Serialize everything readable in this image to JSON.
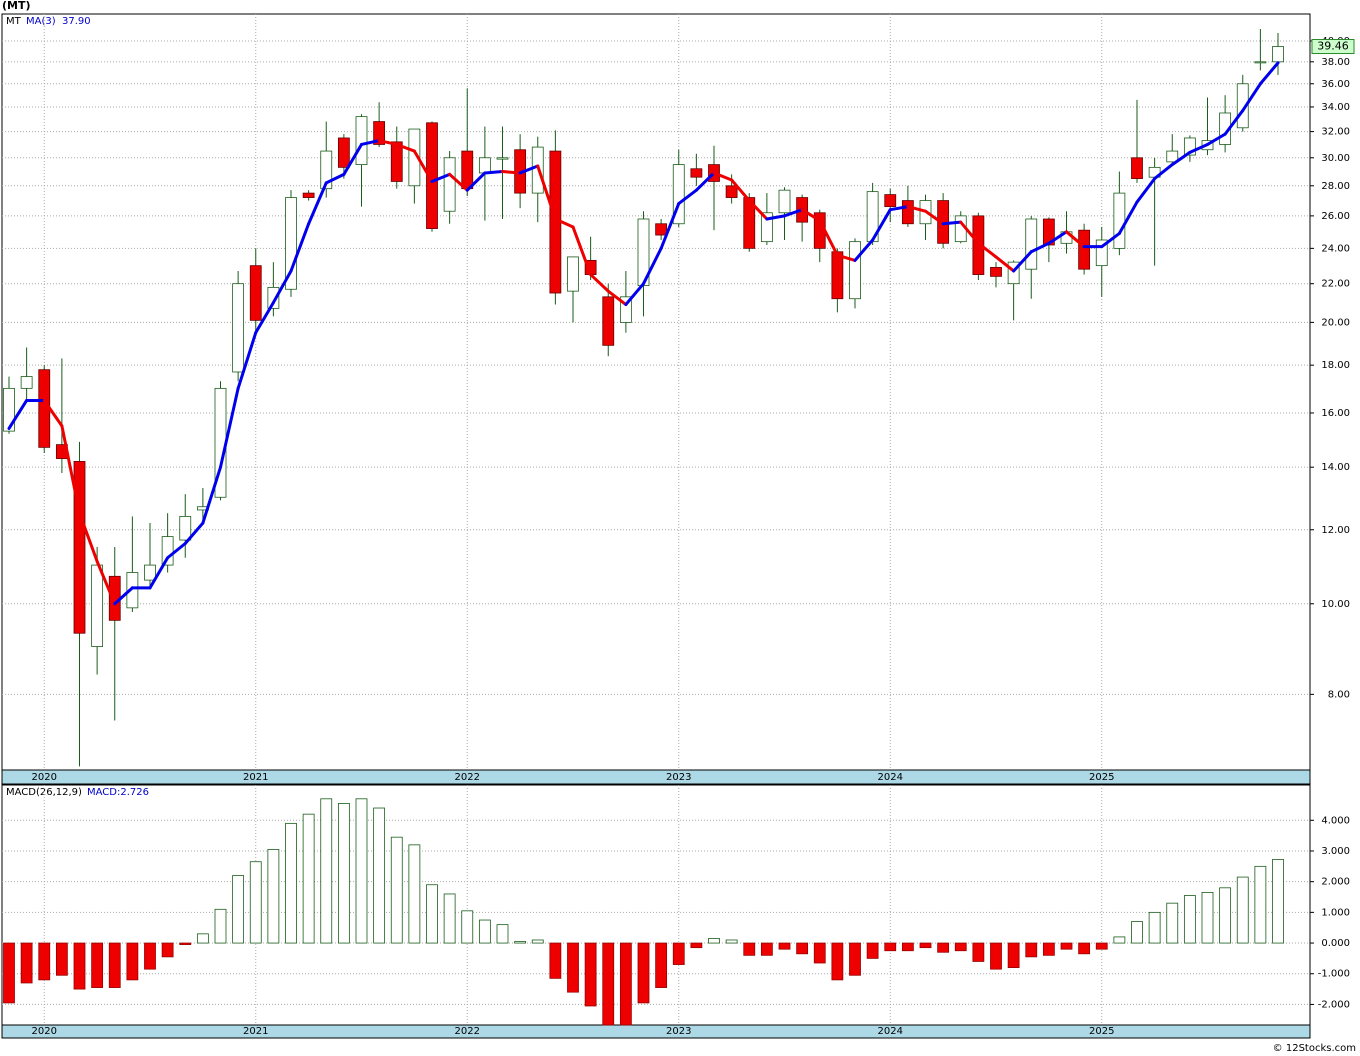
{
  "chart_data": [
    {
      "type": "candlestick",
      "title": "(MT)",
      "ticker": "MT",
      "footer": "© 12Stocks.com",
      "categories": [
        null,
        null,
        "2020",
        null,
        null,
        null,
        null,
        null,
        null,
        null,
        null,
        null,
        null,
        null,
        "2021",
        null,
        null,
        null,
        null,
        null,
        null,
        null,
        null,
        null,
        null,
        null,
        "2022",
        null,
        null,
        null,
        null,
        null,
        null,
        null,
        null,
        null,
        null,
        null,
        "2023",
        null,
        null,
        null,
        null,
        null,
        null,
        null,
        null,
        null,
        null,
        null,
        "2024",
        null,
        null,
        null,
        null,
        null,
        null,
        null,
        null,
        null,
        null,
        null,
        "2025",
        null,
        null,
        null,
        null,
        null,
        null,
        null,
        null,
        null,
        null
      ],
      "open": [
        15.3,
        17.0,
        17.8,
        14.8,
        14.2,
        9.0,
        10.7,
        9.9,
        10.6,
        11.0,
        11.7,
        12.6,
        13.0,
        17.7,
        23.0,
        20.7,
        21.7,
        27.5,
        27.8,
        31.5,
        29.5,
        32.8,
        31.2,
        28.0,
        32.7,
        26.3,
        30.5,
        28.9,
        29.9,
        30.6,
        27.5,
        30.5,
        21.6,
        23.3,
        21.3,
        20.0,
        21.9,
        25.5,
        25.5,
        29.2,
        29.5,
        28.0,
        27.2,
        24.4,
        26.2,
        27.2,
        26.2,
        23.8,
        21.2,
        24.4,
        27.4,
        27.0,
        25.5,
        27.0,
        24.4,
        26.0,
        22.9,
        22.0,
        22.8,
        25.8,
        24.3,
        25.1,
        23.0,
        24.0,
        30.0,
        28.6,
        29.7,
        30.2,
        30.6,
        31.0,
        32.3,
        37.9,
        38.0
      ],
      "high": [
        17.5,
        18.8,
        18.0,
        18.3,
        14.9,
        11.5,
        11.5,
        12.4,
        12.2,
        12.5,
        13.1,
        13.3,
        17.3,
        22.7,
        24.0,
        23.2,
        27.7,
        27.7,
        32.8,
        31.8,
        33.4,
        34.4,
        32.4,
        32.2,
        32.8,
        30.5,
        35.6,
        32.4,
        32.4,
        31.8,
        31.6,
        32.1,
        23.5,
        24.7,
        22.0,
        22.7,
        26.3,
        25.8,
        30.6,
        30.3,
        30.9,
        28.8,
        27.5,
        27.5,
        27.9,
        27.4,
        26.4,
        24.0,
        24.6,
        28.2,
        27.8,
        28.0,
        27.4,
        27.5,
        26.3,
        26.2,
        23.2,
        23.3,
        26.0,
        25.9,
        26.3,
        25.5,
        25.3,
        29.0,
        34.6,
        30.0,
        31.8,
        31.7,
        34.8,
        35.0,
        36.8,
        41.2,
        40.8
      ],
      "low": [
        15.2,
        16.5,
        14.5,
        13.8,
        6.7,
        8.4,
        7.5,
        9.8,
        10.4,
        10.8,
        11.2,
        12.3,
        12.9,
        17.3,
        19.5,
        20.3,
        21.3,
        27.0,
        27.2,
        28.5,
        26.6,
        30.8,
        27.8,
        26.8,
        25.0,
        25.5,
        27.3,
        25.7,
        25.8,
        26.5,
        25.6,
        20.9,
        20.0,
        22.2,
        18.4,
        19.5,
        20.3,
        24.5,
        25.3,
        28.0,
        25.1,
        26.8,
        23.8,
        24.2,
        24.5,
        24.4,
        23.2,
        20.5,
        20.7,
        24.2,
        25.6,
        25.3,
        24.5,
        24.0,
        24.3,
        22.2,
        21.8,
        20.1,
        21.2,
        23.2,
        23.7,
        22.5,
        21.3,
        23.6,
        28.2,
        23.0,
        29.6,
        29.7,
        30.2,
        30.4,
        32.0,
        37.2,
        36.8
      ],
      "close": [
        17.0,
        17.5,
        14.7,
        14.3,
        9.3,
        11.0,
        9.6,
        10.8,
        11.0,
        11.8,
        12.4,
        12.7,
        17.0,
        22.0,
        20.1,
        21.8,
        27.2,
        27.2,
        30.5,
        29.3,
        33.2,
        31.0,
        28.3,
        32.2,
        25.2,
        30.0,
        27.8,
        30.0,
        30.0,
        27.5,
        30.8,
        21.5,
        23.5,
        22.5,
        18.9,
        21.3,
        25.8,
        24.8,
        29.5,
        28.6,
        28.3,
        27.2,
        24.0,
        26.2,
        27.7,
        25.6,
        24.0,
        21.2,
        24.4,
        27.6,
        26.6,
        25.5,
        27.0,
        24.3,
        26.0,
        22.5,
        22.4,
        23.2,
        25.8,
        24.2,
        25.0,
        22.8,
        24.5,
        27.5,
        28.5,
        29.3,
        30.5,
        31.5,
        31.3,
        33.5,
        36.0,
        38.0,
        39.46
      ],
      "ma": {
        "name": "MA(3)",
        "label": "37.90",
        "up_color": "#0000ee",
        "down_color": "#ee0000",
        "values": [
          15.4,
          16.5,
          16.5,
          15.5,
          12.5,
          11.1,
          10.0,
          10.4,
          10.4,
          11.2,
          11.6,
          12.2,
          14.0,
          17.0,
          19.5,
          21.0,
          22.7,
          25.5,
          28.2,
          28.8,
          31.0,
          31.3,
          31.0,
          30.5,
          28.3,
          28.8,
          27.7,
          28.9,
          29.0,
          28.9,
          29.4,
          25.8,
          25.3,
          22.5,
          21.6,
          20.9,
          22.0,
          24.0,
          26.8,
          27.7,
          28.9,
          28.4,
          27.0,
          25.8,
          26.0,
          26.4,
          25.7,
          23.6,
          23.3,
          24.5,
          26.4,
          26.6,
          26.3,
          25.5,
          25.6,
          24.3,
          23.5,
          22.7,
          23.8,
          24.3,
          25.0,
          24.1,
          24.1,
          24.9,
          26.9,
          28.5,
          29.5,
          30.4,
          31.0,
          31.8,
          33.7,
          36.0,
          37.9
        ]
      },
      "ylim": [
        6.64,
        42.75
      ],
      "log_scale": true,
      "grid": true,
      "up_color": "#ffffff",
      "down_color": "#ee0000",
      "wick_color": "#1a5c1a",
      "yticks": [
        {
          "value": 8,
          "label": "8.00"
        },
        {
          "value": 10,
          "label": "10.00"
        },
        {
          "value": 12,
          "label": "12.00"
        },
        {
          "value": 14,
          "label": "14.00"
        },
        {
          "value": 16,
          "label": "16.00"
        },
        {
          "value": 18,
          "label": "18.00"
        },
        {
          "value": 20,
          "label": "20.00"
        },
        {
          "value": 22,
          "label": "22.00"
        },
        {
          "value": 24,
          "label": "24.00"
        },
        {
          "value": 26,
          "label": "26.00"
        },
        {
          "value": 28,
          "label": "28.00"
        },
        {
          "value": 30,
          "label": "30.00"
        },
        {
          "value": 32,
          "label": "32.00"
        },
        {
          "value": 34,
          "label": "34.00"
        },
        {
          "value": 36,
          "label": "36.00"
        },
        {
          "value": 38,
          "label": "38.00"
        },
        {
          "value": 40,
          "label": "40.00"
        }
      ]
    },
    {
      "type": "bar",
      "name": "MACD(26,12,9)",
      "value_label": "MACD:2.726",
      "categories": [
        null,
        null,
        "2020",
        null,
        null,
        null,
        null,
        null,
        null,
        null,
        null,
        null,
        null,
        null,
        "2021",
        null,
        null,
        null,
        null,
        null,
        null,
        null,
        null,
        null,
        null,
        null,
        "2022",
        null,
        null,
        null,
        null,
        null,
        null,
        null,
        null,
        null,
        null,
        null,
        "2023",
        null,
        null,
        null,
        null,
        null,
        null,
        null,
        null,
        null,
        null,
        null,
        "2024",
        null,
        null,
        null,
        null,
        null,
        null,
        null,
        null,
        null,
        null,
        null,
        "2025",
        null,
        null,
        null,
        null,
        null,
        null,
        null,
        null,
        null,
        null
      ],
      "values": [
        -1.95,
        -1.3,
        -1.2,
        -1.05,
        -1.5,
        -1.45,
        -1.45,
        -1.2,
        -0.85,
        -0.45,
        -0.05,
        0.3,
        1.1,
        2.2,
        2.65,
        3.05,
        3.9,
        4.2,
        4.7,
        4.55,
        4.7,
        4.4,
        3.45,
        3.2,
        1.9,
        1.6,
        1.05,
        0.75,
        0.6,
        0.05,
        0.1,
        -1.15,
        -1.6,
        -2.05,
        -2.67,
        -2.67,
        -1.95,
        -1.45,
        -0.7,
        -0.15,
        0.15,
        0.1,
        -0.4,
        -0.4,
        -0.2,
        -0.35,
        -0.65,
        -1.2,
        -1.05,
        -0.5,
        -0.25,
        -0.25,
        -0.15,
        -0.3,
        -0.25,
        -0.6,
        -0.85,
        -0.8,
        -0.45,
        -0.4,
        -0.2,
        -0.35,
        -0.2,
        0.2,
        0.7,
        1.0,
        1.3,
        1.55,
        1.65,
        1.8,
        2.15,
        2.5,
        2.726
      ],
      "ylim": [
        -2.67,
        5.15
      ],
      "grid": true,
      "pos_color": "#ffffff",
      "neg_color": "#ee0000",
      "outline_color": "#1a5c1a",
      "yticks": [
        {
          "value": -2,
          "label": "-2.000"
        },
        {
          "value": -1,
          "label": "-1.000"
        },
        {
          "value": 0,
          "label": "0.000"
        },
        {
          "value": 1,
          "label": "1.000"
        },
        {
          "value": 2,
          "label": "2.000"
        },
        {
          "value": 3,
          "label": "3.000"
        },
        {
          "value": 4,
          "label": "4.000"
        }
      ]
    }
  ]
}
